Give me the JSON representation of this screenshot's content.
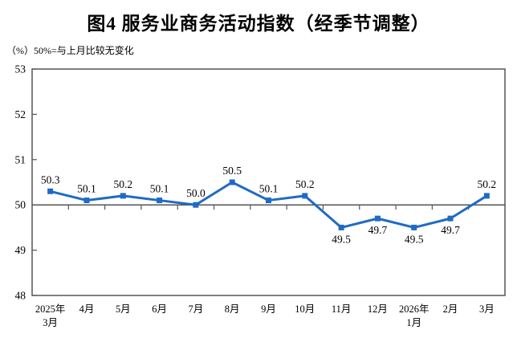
{
  "title": "图4 服务业商务活动指数（经季节调整）",
  "subtitle": "（%）50%=与上月比较无变化",
  "chart_data": {
    "type": "line",
    "categories": [
      [
        "2025年",
        "3月"
      ],
      [
        "4月"
      ],
      [
        "5月"
      ],
      [
        "6月"
      ],
      [
        "7月"
      ],
      [
        "8月"
      ],
      [
        "9月"
      ],
      [
        "10月"
      ],
      [
        "11月"
      ],
      [
        "12月"
      ],
      [
        "2026年",
        "1月"
      ],
      [
        "2月"
      ],
      [
        "3月"
      ]
    ],
    "values": [
      50.3,
      50.1,
      50.2,
      50.1,
      50.0,
      50.5,
      50.1,
      50.2,
      49.5,
      49.7,
      49.5,
      49.7,
      50.2
    ],
    "series_name": "服务业商务活动指数",
    "ylim": [
      48,
      53
    ],
    "yticks": [
      48,
      49,
      50,
      51,
      52,
      53
    ],
    "reference_line": 50,
    "grid": false,
    "legend": null,
    "colors": {
      "line": "#1F6BC4",
      "marker": "#1F6BC4",
      "axis": "#555555",
      "text": "#000000",
      "background": "#FFFFFF"
    }
  }
}
